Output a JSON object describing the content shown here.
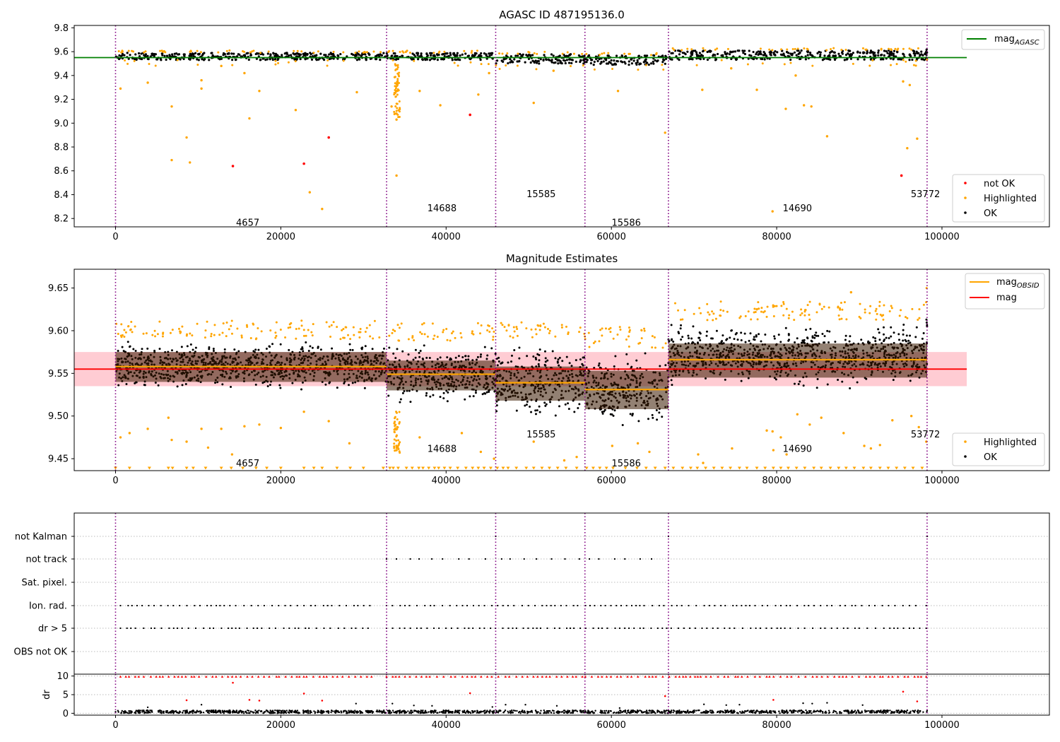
{
  "figure": {
    "title": "AGASC ID 487195136.0"
  },
  "colors": {
    "ok": "#000000",
    "highlighted": "#ffa500",
    "not_ok": "#ff0000",
    "mag_agasc": "#008000",
    "mag": "#ff0000",
    "mag_obsid": "#ffa500",
    "obsid_boundary": "#800080",
    "band": "#ffb6c1"
  },
  "chart_data": [
    {
      "type": "scatter",
      "title": "AGASC ID 487195136.0",
      "xlim": [
        -5000,
        113000
      ],
      "ylim": [
        8.13,
        9.82
      ],
      "xticks": [
        0,
        20000,
        40000,
        60000,
        80000,
        100000
      ],
      "xtick_labels": [
        "0",
        "20000",
        "40000",
        "60000",
        "80000",
        "100000"
      ],
      "yticks": [
        8.2,
        8.4,
        8.6,
        8.8,
        9.0,
        9.2,
        9.4,
        9.6,
        9.8
      ],
      "ytick_labels": [
        "8.2",
        "8.4",
        "8.6",
        "8.8",
        "9.0",
        "9.2",
        "9.4",
        "9.6",
        "9.8"
      ],
      "mag_agasc": 9.55,
      "obsid_boundaries": [
        0,
        32800,
        46000,
        56800,
        66900,
        98200
      ],
      "segments": [
        {
          "obsid": "4657",
          "x0": 0,
          "x1": 32800,
          "label_x": 16000,
          "label_y": 8.17,
          "ok_lo": 9.53,
          "ok_hi": 9.59
        },
        {
          "obsid": "14688",
          "x0": 32800,
          "x1": 46000,
          "label_x": 39500,
          "label_y": 8.29,
          "ok_lo": 9.53,
          "ok_hi": 9.59
        },
        {
          "obsid": "15585",
          "x0": 46000,
          "x1": 56800,
          "label_x": 51500,
          "label_y": 8.41,
          "ok_lo": 9.5,
          "ok_hi": 9.58
        },
        {
          "obsid": "15586",
          "x0": 56800,
          "x1": 66900,
          "label_x": 61800,
          "label_y": 8.17,
          "ok_lo": 9.49,
          "ok_hi": 9.57
        },
        {
          "obsid": "14690",
          "x0": 66900,
          "x1": 98200,
          "label_x": 82500,
          "label_y": 8.29,
          "ok_lo": 9.53,
          "ok_hi": 9.61
        },
        {
          "obsid": "53772",
          "x0": 98100,
          "x1": 98200,
          "label_x": 98000,
          "label_y": 8.41,
          "ok_lo": 9.54,
          "ok_hi": 9.62
        }
      ],
      "not_ok_points": [
        [
          14200,
          8.64
        ],
        [
          22800,
          8.66
        ],
        [
          25800,
          8.88
        ],
        [
          42900,
          9.07
        ],
        [
          95100,
          8.56
        ]
      ],
      "highlighted_points": [
        [
          600,
          9.29
        ],
        [
          3900,
          9.34
        ],
        [
          6800,
          9.14
        ],
        [
          6800,
          8.69
        ],
        [
          8600,
          8.88
        ],
        [
          9000,
          8.67
        ],
        [
          10400,
          9.36
        ],
        [
          10400,
          9.29
        ],
        [
          15600,
          9.42
        ],
        [
          16200,
          9.04
        ],
        [
          17400,
          9.27
        ],
        [
          21800,
          9.11
        ],
        [
          23500,
          8.42
        ],
        [
          25000,
          8.28
        ],
        [
          29200,
          9.26
        ],
        [
          34000,
          8.56
        ],
        [
          34000,
          9.08
        ],
        [
          34000,
          9.03
        ],
        [
          33400,
          9.14
        ],
        [
          39300,
          9.15
        ],
        [
          43900,
          9.24
        ],
        [
          50600,
          9.17
        ],
        [
          60800,
          9.27
        ],
        [
          66500,
          8.92
        ],
        [
          71000,
          9.28
        ],
        [
          77600,
          9.28
        ],
        [
          79500,
          8.26
        ],
        [
          81100,
          9.12
        ],
        [
          82300,
          9.4
        ],
        [
          83300,
          9.15
        ],
        [
          84200,
          9.14
        ],
        [
          86100,
          8.89
        ],
        [
          95300,
          9.35
        ],
        [
          95800,
          8.79
        ],
        [
          96100,
          9.32
        ],
        [
          97000,
          8.87
        ],
        [
          36800,
          9.27
        ],
        [
          45200,
          9.42
        ],
        [
          53000,
          9.44
        ],
        [
          12800,
          9.48
        ],
        [
          74500,
          9.46
        ]
      ],
      "legend": {
        "lines": [
          {
            "label": "mag",
            "sub": "AGASC"
          }
        ],
        "markers": [
          "not OK",
          "Highlighted",
          "OK"
        ]
      }
    },
    {
      "type": "scatter",
      "title": "Magnitude Estimates",
      "xlim": [
        -5000,
        113000
      ],
      "ylim": [
        9.436,
        9.672
      ],
      "xticks": [
        0,
        20000,
        40000,
        60000,
        80000,
        100000
      ],
      "xtick_labels": [
        "0",
        "20000",
        "40000",
        "60000",
        "80000",
        "100000"
      ],
      "yticks": [
        9.45,
        9.5,
        9.55,
        9.6,
        9.65
      ],
      "ytick_labels": [
        "9.45",
        "9.50",
        "9.55",
        "9.60",
        "9.65"
      ],
      "mag": 9.555,
      "mag_band": [
        9.535,
        9.575
      ],
      "mag_line_extent": [
        0,
        103000
      ],
      "obsid_boundaries": [
        0,
        32800,
        46000,
        56800,
        66900,
        98200
      ],
      "segments": [
        {
          "obsid": "4657",
          "x0": 0,
          "x1": 32800,
          "mag_obsid": 9.558,
          "std_lo": 9.54,
          "std_hi": 9.575,
          "ok_lo": 9.528,
          "ok_hi": 9.59,
          "hl_hi": 9.612,
          "label_x": 16000,
          "label_y": 9.445
        },
        {
          "obsid": "14688",
          "x0": 32800,
          "x1": 46000,
          "mag_obsid": 9.549,
          "std_lo": 9.53,
          "std_hi": 9.565,
          "ok_lo": 9.508,
          "ok_hi": 9.588,
          "hl_hi": 9.61,
          "label_x": 39500,
          "label_y": 9.462
        },
        {
          "obsid": "15585",
          "x0": 46000,
          "x1": 56800,
          "mag_obsid": 9.539,
          "std_lo": 9.518,
          "std_hi": 9.558,
          "ok_lo": 9.49,
          "ok_hi": 9.59,
          "hl_hi": 9.61,
          "label_x": 51500,
          "label_y": 9.479
        },
        {
          "obsid": "15586",
          "x0": 56800,
          "x1": 66900,
          "mag_obsid": 9.531,
          "std_lo": 9.508,
          "std_hi": 9.553,
          "ok_lo": 9.48,
          "ok_hi": 9.58,
          "hl_hi": 9.605,
          "label_x": 61800,
          "label_y": 9.445
        },
        {
          "obsid": "14690",
          "x0": 66900,
          "x1": 98200,
          "mag_obsid": 9.566,
          "std_lo": 9.545,
          "std_hi": 9.585,
          "ok_lo": 9.53,
          "ok_hi": 9.612,
          "hl_hi": 9.635,
          "label_x": 82500,
          "label_y": 9.462
        },
        {
          "obsid": "53772",
          "x0": 98100,
          "x1": 98200,
          "mag_obsid": 9.566,
          "std_lo": 9.545,
          "std_hi": 9.585,
          "ok_lo": 9.54,
          "ok_hi": 9.65,
          "hl_hi": 9.65,
          "label_x": 98000,
          "label_y": 9.479
        }
      ],
      "highlighted_points": [
        [
          600,
          9.475
        ],
        [
          1700,
          9.48
        ],
        [
          3900,
          9.485
        ],
        [
          6400,
          9.498
        ],
        [
          6800,
          9.472
        ],
        [
          8600,
          9.47
        ],
        [
          10400,
          9.485
        ],
        [
          11200,
          9.463
        ],
        [
          12800,
          9.485
        ],
        [
          14100,
          9.455
        ],
        [
          15600,
          9.488
        ],
        [
          17400,
          9.49
        ],
        [
          20000,
          9.486
        ],
        [
          22800,
          9.505
        ],
        [
          25800,
          9.494
        ],
        [
          28300,
          9.468
        ],
        [
          34000,
          9.465
        ],
        [
          34000,
          9.46
        ],
        [
          36800,
          9.475
        ],
        [
          41900,
          9.48
        ],
        [
          44200,
          9.458
        ],
        [
          45800,
          9.45
        ],
        [
          50600,
          9.47
        ],
        [
          54300,
          9.448
        ],
        [
          55800,
          9.452
        ],
        [
          60100,
          9.465
        ],
        [
          63200,
          9.468
        ],
        [
          64600,
          9.458
        ],
        [
          70500,
          9.455
        ],
        [
          71100,
          9.445
        ],
        [
          74600,
          9.462
        ],
        [
          78800,
          9.483
        ],
        [
          79500,
          9.482
        ],
        [
          79600,
          9.46
        ],
        [
          80500,
          9.475
        ],
        [
          81200,
          9.455
        ],
        [
          82500,
          9.502
        ],
        [
          84000,
          9.49
        ],
        [
          85400,
          9.498
        ],
        [
          88100,
          9.48
        ],
        [
          90600,
          9.465
        ],
        [
          91400,
          9.462
        ],
        [
          92500,
          9.466
        ],
        [
          94000,
          9.495
        ],
        [
          96300,
          9.5
        ],
        [
          97200,
          9.487
        ],
        [
          98100,
          9.47
        ],
        [
          89000,
          9.645
        ],
        [
          77600,
          9.625
        ]
      ],
      "clipped_low_x": [
        0,
        1700,
        4100,
        6400,
        6900,
        8600,
        9400,
        10900,
        12800,
        14000,
        15400,
        17000,
        18300,
        20000,
        22800,
        24000,
        25000,
        26800,
        28400,
        30000,
        32400,
        33200,
        33600,
        34200,
        35200,
        35900,
        36700,
        37200,
        37900,
        38600,
        39100,
        39800,
        40500,
        41400,
        42400,
        43200,
        43900,
        44600,
        45400,
        46200,
        46900,
        47500,
        48500,
        49700,
        50600,
        51600,
        52500,
        53500,
        54500,
        55800,
        57000,
        57800,
        58600,
        59400,
        60200,
        61700,
        63100,
        64200,
        65300,
        66500,
        67500,
        68600,
        69600,
        70400,
        71400,
        72400,
        73400,
        74400,
        75500,
        76400,
        77600,
        78600,
        79600,
        80500,
        81400,
        82400,
        83400,
        84500,
        85400,
        86500,
        87500,
        88400,
        89400,
        90500,
        91400,
        92500,
        93500,
        94500,
        95500,
        96500,
        97600
      ],
      "legend": {
        "lines": [
          {
            "label": "mag",
            "sub": "OBSID"
          },
          {
            "label": "mag",
            "sub": ""
          }
        ],
        "markers": [
          "Highlighted",
          "OK"
        ]
      }
    },
    {
      "type": "scatter",
      "title": "",
      "xlim": [
        -5000,
        113000
      ],
      "flag_rows": [
        "not Kalman",
        "not track",
        "Sat. pixel.",
        "Ion. rad.",
        "dr > 5",
        "OBS not OK"
      ],
      "obsid_boundaries": [
        0,
        32800,
        46000,
        56800,
        66900,
        98200
      ],
      "flag_points": {
        "not Kalman": [
          46000,
          66900,
          98200
        ],
        "not track": [
          [
            32800,
            65000
          ]
        ],
        "Sat. pixel.": [],
        "Ion. rad.": [
          [
            600,
            31000
          ],
          [
            32800,
            97500
          ],
          [
            98100,
            98200
          ]
        ],
        "dr > 5": [
          [
            600,
            31000
          ],
          [
            32800,
            97500
          ],
          [
            98100,
            98200
          ]
        ],
        "OBS not OK": []
      },
      "note": ""
    },
    {
      "type": "scatter",
      "title": "",
      "ylabel": "dr",
      "xlim": [
        -5000,
        113000
      ],
      "ylim": [
        -0.5,
        10.5
      ],
      "xticks": [
        0,
        20000,
        40000,
        60000,
        80000,
        100000
      ],
      "xtick_labels": [
        "0",
        "20000",
        "40000",
        "60000",
        "80000",
        "100000"
      ],
      "yticks": [
        0,
        5,
        10
      ],
      "ytick_labels": [
        "0",
        "5",
        "10"
      ],
      "obsid_boundaries": [
        0,
        32800,
        46000,
        56800,
        66900,
        98200
      ],
      "red_scatter": [
        [
          14200,
          8.2
        ],
        [
          16200,
          3.6
        ],
        [
          17400,
          3.4
        ],
        [
          22800,
          5.3
        ],
        [
          25000,
          3.4
        ],
        [
          42900,
          5.4
        ],
        [
          95300,
          5.8
        ],
        [
          8600,
          3.5
        ],
        [
          79600,
          3.6
        ],
        [
          66500,
          4.6
        ],
        [
          97000,
          3.2
        ]
      ],
      "black_scatter": [
        [
          10400,
          2.3
        ],
        [
          29100,
          2.6
        ],
        [
          33500,
          2.6
        ],
        [
          36100,
          2.1
        ],
        [
          47200,
          2.3
        ],
        [
          49600,
          2.3
        ],
        [
          53400,
          2.0
        ],
        [
          71200,
          2.4
        ],
        [
          73900,
          2.2
        ],
        [
          75500,
          2.3
        ],
        [
          83200,
          2.7
        ],
        [
          84300,
          2.6
        ],
        [
          86100,
          2.8
        ],
        [
          90400,
          2.2
        ],
        [
          38300,
          2.0
        ],
        [
          3900,
          1.6
        ],
        [
          45600,
          1.7
        ],
        [
          61000,
          1.4
        ]
      ],
      "red_clipped_x_segments": [
        [
          600,
          31000
        ],
        [
          32800,
          97500
        ],
        [
          98100,
          98200
        ]
      ]
    }
  ]
}
